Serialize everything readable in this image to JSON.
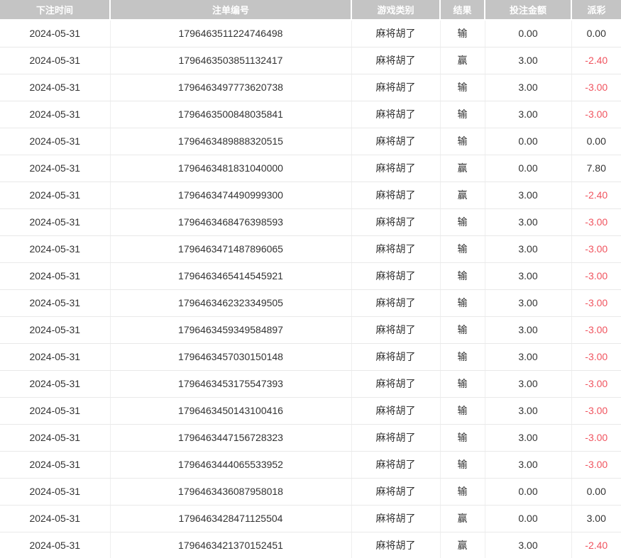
{
  "table": {
    "headers": [
      "下注时间",
      "注单编号",
      "游戏类别",
      "结果",
      "投注金额",
      "派彩"
    ],
    "column_keys": [
      "bet_time",
      "order_no",
      "game_type",
      "result",
      "bet_amount",
      "payout"
    ],
    "rows": [
      {
        "bet_time": "2024-05-31",
        "order_no": "1796463511224746498",
        "game_type": "麻将胡了",
        "result": "输",
        "bet_amount": "0.00",
        "payout": "0.00"
      },
      {
        "bet_time": "2024-05-31",
        "order_no": "1796463503851132417",
        "game_type": "麻将胡了",
        "result": "赢",
        "bet_amount": "3.00",
        "payout": "-2.40"
      },
      {
        "bet_time": "2024-05-31",
        "order_no": "1796463497773620738",
        "game_type": "麻将胡了",
        "result": "输",
        "bet_amount": "3.00",
        "payout": "-3.00"
      },
      {
        "bet_time": "2024-05-31",
        "order_no": "1796463500848035841",
        "game_type": "麻将胡了",
        "result": "输",
        "bet_amount": "3.00",
        "payout": "-3.00"
      },
      {
        "bet_time": "2024-05-31",
        "order_no": "1796463489888320515",
        "game_type": "麻将胡了",
        "result": "输",
        "bet_amount": "0.00",
        "payout": "0.00"
      },
      {
        "bet_time": "2024-05-31",
        "order_no": "1796463481831040000",
        "game_type": "麻将胡了",
        "result": "赢",
        "bet_amount": "0.00",
        "payout": "7.80"
      },
      {
        "bet_time": "2024-05-31",
        "order_no": "1796463474490999300",
        "game_type": "麻将胡了",
        "result": "赢",
        "bet_amount": "3.00",
        "payout": "-2.40"
      },
      {
        "bet_time": "2024-05-31",
        "order_no": "1796463468476398593",
        "game_type": "麻将胡了",
        "result": "输",
        "bet_amount": "3.00",
        "payout": "-3.00"
      },
      {
        "bet_time": "2024-05-31",
        "order_no": "1796463471487896065",
        "game_type": "麻将胡了",
        "result": "输",
        "bet_amount": "3.00",
        "payout": "-3.00"
      },
      {
        "bet_time": "2024-05-31",
        "order_no": "1796463465414545921",
        "game_type": "麻将胡了",
        "result": "输",
        "bet_amount": "3.00",
        "payout": "-3.00"
      },
      {
        "bet_time": "2024-05-31",
        "order_no": "1796463462323349505",
        "game_type": "麻将胡了",
        "result": "输",
        "bet_amount": "3.00",
        "payout": "-3.00"
      },
      {
        "bet_time": "2024-05-31",
        "order_no": "1796463459349584897",
        "game_type": "麻将胡了",
        "result": "输",
        "bet_amount": "3.00",
        "payout": "-3.00"
      },
      {
        "bet_time": "2024-05-31",
        "order_no": "1796463457030150148",
        "game_type": "麻将胡了",
        "result": "输",
        "bet_amount": "3.00",
        "payout": "-3.00"
      },
      {
        "bet_time": "2024-05-31",
        "order_no": "1796463453175547393",
        "game_type": "麻将胡了",
        "result": "输",
        "bet_amount": "3.00",
        "payout": "-3.00"
      },
      {
        "bet_time": "2024-05-31",
        "order_no": "1796463450143100416",
        "game_type": "麻将胡了",
        "result": "输",
        "bet_amount": "3.00",
        "payout": "-3.00"
      },
      {
        "bet_time": "2024-05-31",
        "order_no": "1796463447156728323",
        "game_type": "麻将胡了",
        "result": "输",
        "bet_amount": "3.00",
        "payout": "-3.00"
      },
      {
        "bet_time": "2024-05-31",
        "order_no": "1796463444065533952",
        "game_type": "麻将胡了",
        "result": "输",
        "bet_amount": "3.00",
        "payout": "-3.00"
      },
      {
        "bet_time": "2024-05-31",
        "order_no": "1796463436087958018",
        "game_type": "麻将胡了",
        "result": "输",
        "bet_amount": "0.00",
        "payout": "0.00"
      },
      {
        "bet_time": "2024-05-31",
        "order_no": "1796463428471125504",
        "game_type": "麻将胡了",
        "result": "赢",
        "bet_amount": "0.00",
        "payout": "3.00"
      },
      {
        "bet_time": "2024-05-31",
        "order_no": "1796463421370152451",
        "game_type": "麻将胡了",
        "result": "赢",
        "bet_amount": "3.00",
        "payout": "-2.40"
      }
    ]
  },
  "colors": {
    "header_bg": "#c4c4c4",
    "header_text": "#ffffff",
    "body_text": "#333333",
    "negative": "#f0545f",
    "row_border": "#e9e9e9",
    "col_border": "#efefef"
  }
}
